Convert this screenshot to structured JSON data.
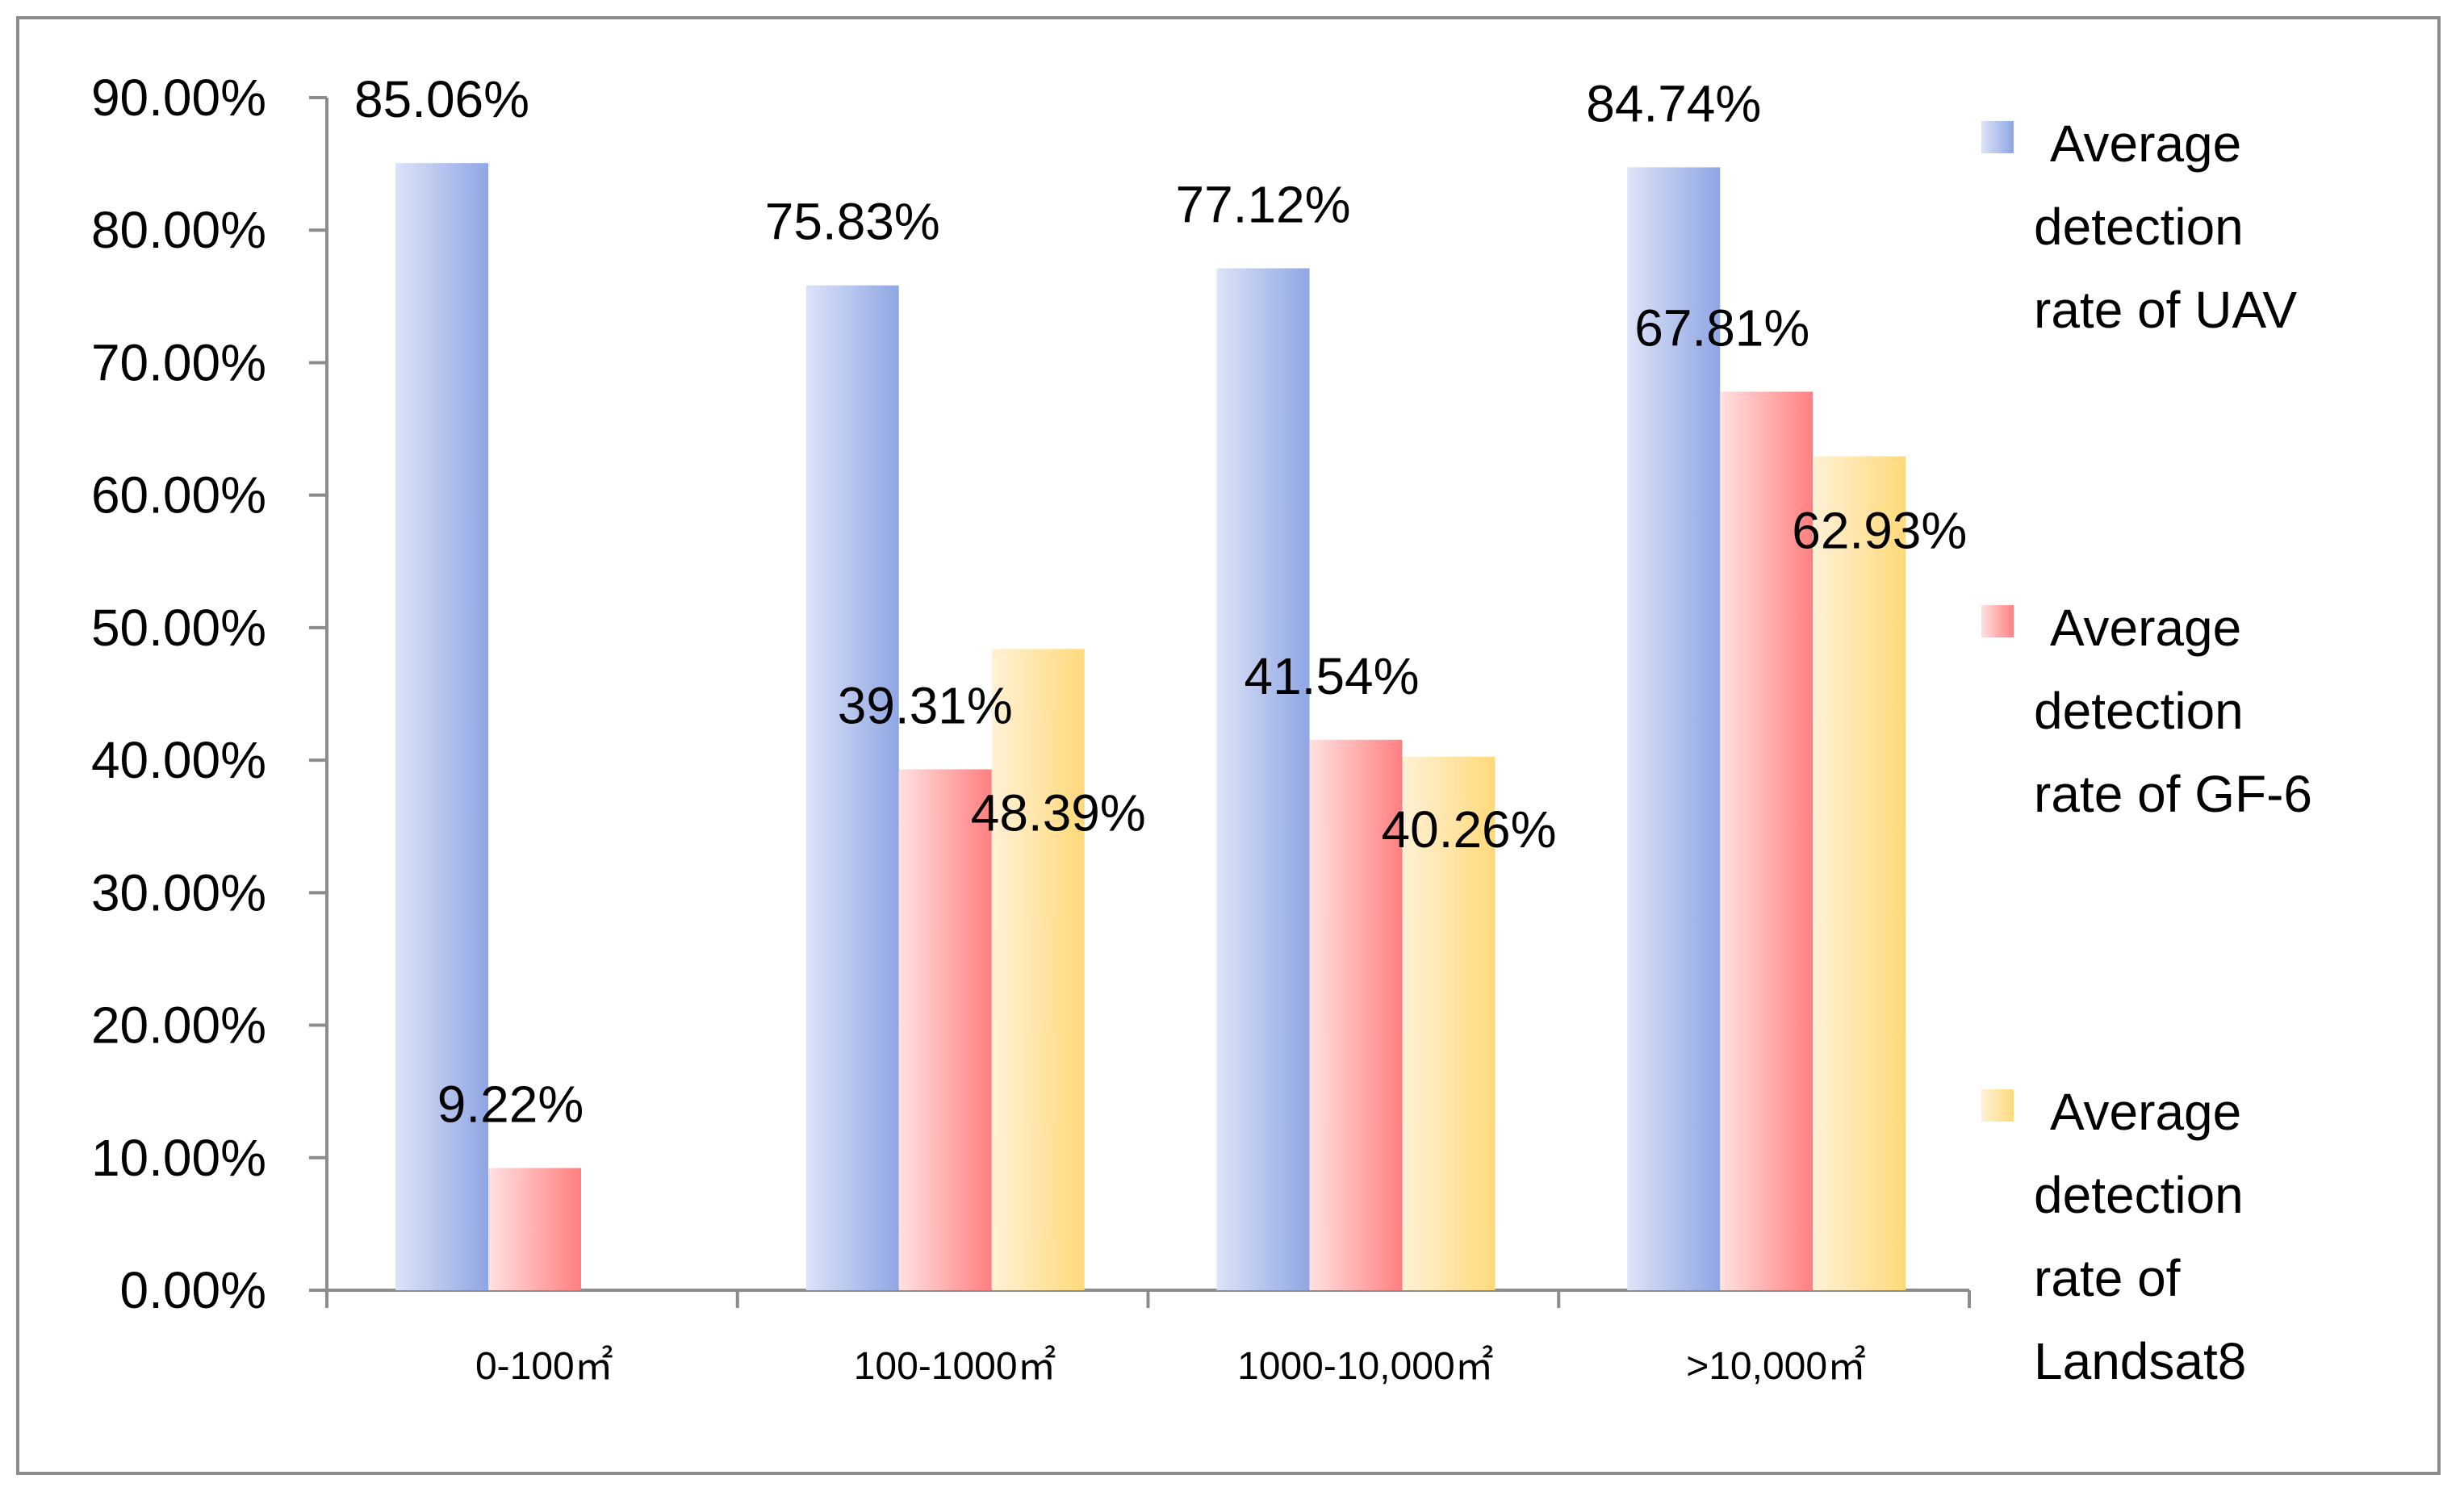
{
  "chart_data": {
    "type": "bar",
    "title": "",
    "xlabel": "",
    "ylabel": "",
    "ylim": [
      0,
      90
    ],
    "ytick_step": 10,
    "ytick_labels": [
      "0.00%",
      "10.00%",
      "20.00%",
      "30.00%",
      "40.00%",
      "50.00%",
      "60.00%",
      "70.00%",
      "80.00%",
      "90.00%"
    ],
    "categories": [
      "0-100㎡",
      "100-1000㎡",
      "1000-10,000㎡",
      ">10,000㎡"
    ],
    "grid": false,
    "legend_position": "right",
    "series": [
      {
        "name": "Average detection rate of UAV",
        "legend_lines": [
          "Average",
          "detection",
          "rate of UAV"
        ],
        "color_light": "#dde3f7",
        "color_dark": "#8fa6e4",
        "values": [
          85.06,
          75.83,
          77.12,
          84.74
        ],
        "labels": [
          "85.06%",
          "75.83%",
          "77.12%",
          "84.74%"
        ]
      },
      {
        "name": "Average detection rate of GF-6",
        "legend_lines": [
          "Average",
          "detection",
          "rate of GF-6"
        ],
        "color_light": "#ffe1e1",
        "color_dark": "#ff7f80",
        "values": [
          9.22,
          39.31,
          41.54,
          67.81
        ],
        "labels": [
          "9.22%",
          "39.31%",
          "41.54%",
          "67.81%"
        ]
      },
      {
        "name": "Average detection rate of Landsat8",
        "legend_lines": [
          "Average",
          "detection",
          "rate of",
          "Landsat8"
        ],
        "color_light": "#fff1d6",
        "color_dark": "#ffd97a",
        "values": [
          null,
          48.39,
          40.26,
          62.93
        ],
        "labels": [
          "",
          "48.39%",
          "40.26%",
          "62.93%"
        ]
      }
    ]
  }
}
